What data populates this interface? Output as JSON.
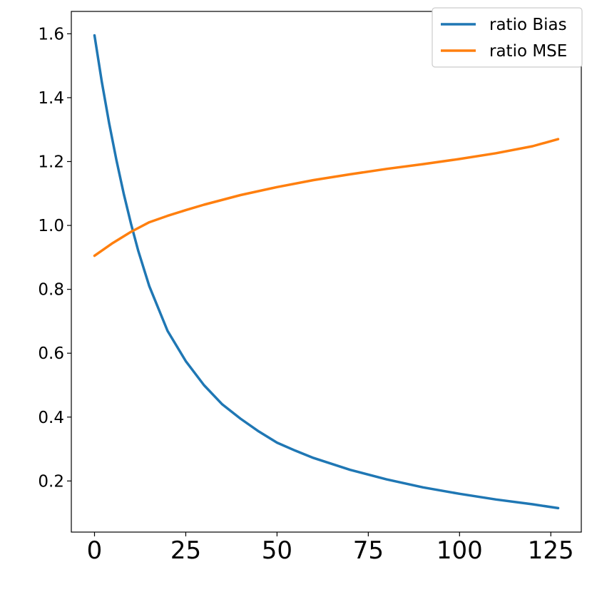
{
  "chart_data": {
    "type": "line",
    "title": "",
    "xlabel": "",
    "ylabel": "",
    "xlim": [
      -6.35,
      133.35
    ],
    "ylim": [
      0.04,
      1.67
    ],
    "xticks": [
      0,
      25,
      50,
      75,
      100,
      125
    ],
    "xtick_labels": [
      "0",
      "25",
      "50",
      "75",
      "100",
      "125"
    ],
    "yticks": [
      0.2,
      0.4,
      0.6,
      0.8,
      1.0,
      1.2,
      1.4,
      1.6
    ],
    "ytick_labels": [
      "0.2",
      "0.4",
      "0.6",
      "0.8",
      "1.0",
      "1.2",
      "1.4",
      "1.6"
    ],
    "grid": false,
    "legend_position": "top-right",
    "series": [
      {
        "name": "ratio Bias",
        "color": "#1f77b4",
        "x": [
          0,
          2,
          4,
          6,
          8,
          10,
          12,
          15,
          20,
          25,
          30,
          35,
          40,
          45,
          50,
          55,
          60,
          70,
          80,
          90,
          100,
          110,
          120,
          127
        ],
        "y": [
          1.595,
          1.45,
          1.32,
          1.205,
          1.1,
          1.005,
          0.92,
          0.81,
          0.67,
          0.575,
          0.5,
          0.44,
          0.395,
          0.355,
          0.32,
          0.295,
          0.272,
          0.235,
          0.205,
          0.18,
          0.16,
          0.142,
          0.127,
          0.115
        ]
      },
      {
        "name": "ratio MSE",
        "color": "#ff7f0e",
        "x": [
          0,
          5,
          10,
          15,
          20,
          25,
          30,
          40,
          50,
          60,
          70,
          80,
          90,
          100,
          110,
          120,
          127
        ],
        "y": [
          0.905,
          0.945,
          0.98,
          1.01,
          1.03,
          1.048,
          1.065,
          1.095,
          1.12,
          1.142,
          1.16,
          1.177,
          1.192,
          1.208,
          1.226,
          1.248,
          1.27
        ]
      }
    ]
  }
}
